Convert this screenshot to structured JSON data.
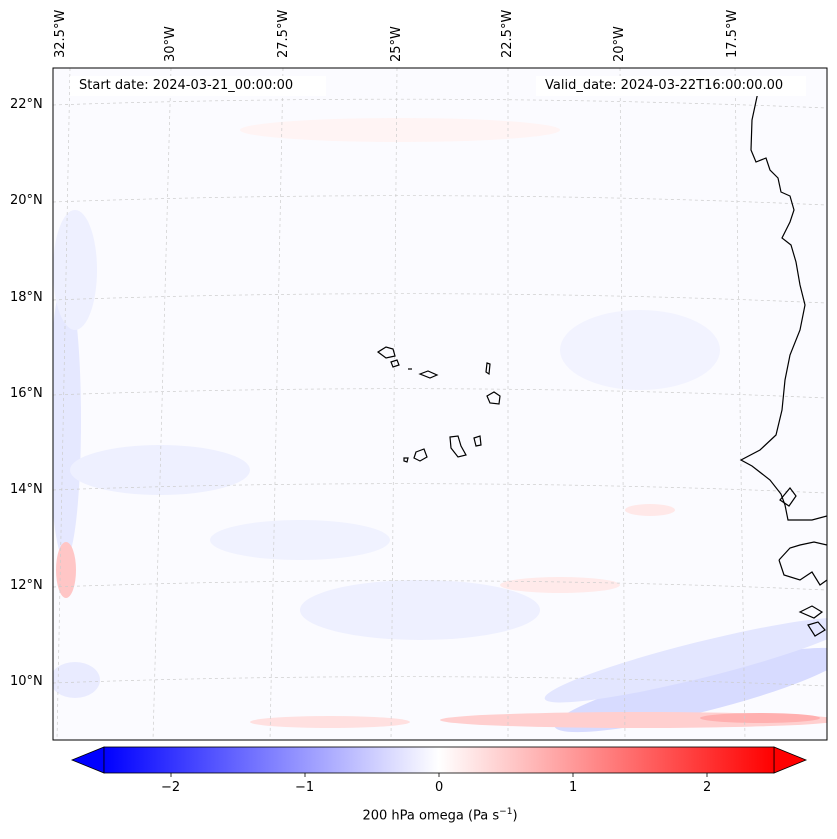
{
  "map": {
    "start_date_text": "Start date: 2024-03-21_00:00:00",
    "valid_date_text": "Valid_date: 2024-03-22T16:00:00.00",
    "longitude_labels": [
      "32.5°W",
      "30°W",
      "27.5°W",
      "25°W",
      "22.5°W",
      "20°W",
      "17.5°W"
    ],
    "latitude_labels": [
      "22°N",
      "20°N",
      "18°N",
      "16°N",
      "14°N",
      "12°N",
      "10°N"
    ],
    "variable": "200 hPa omega",
    "units": "Pa s⁻¹"
  },
  "colorbar": {
    "tick_labels": [
      "−2",
      "−1",
      "0",
      "1",
      "2"
    ],
    "tick_values": [
      -2,
      -1,
      0,
      1,
      2
    ],
    "range": [
      -2.5,
      2.5
    ],
    "colormap": "bwr",
    "label_prefix": "200 hPa omega (Pa s",
    "label_sup": "−1",
    "label_suffix": ")"
  },
  "colors": {
    "coast": "#000000",
    "grid": "#bbbbbb",
    "neg": "#0000ff",
    "pos": "#ff0000"
  }
}
